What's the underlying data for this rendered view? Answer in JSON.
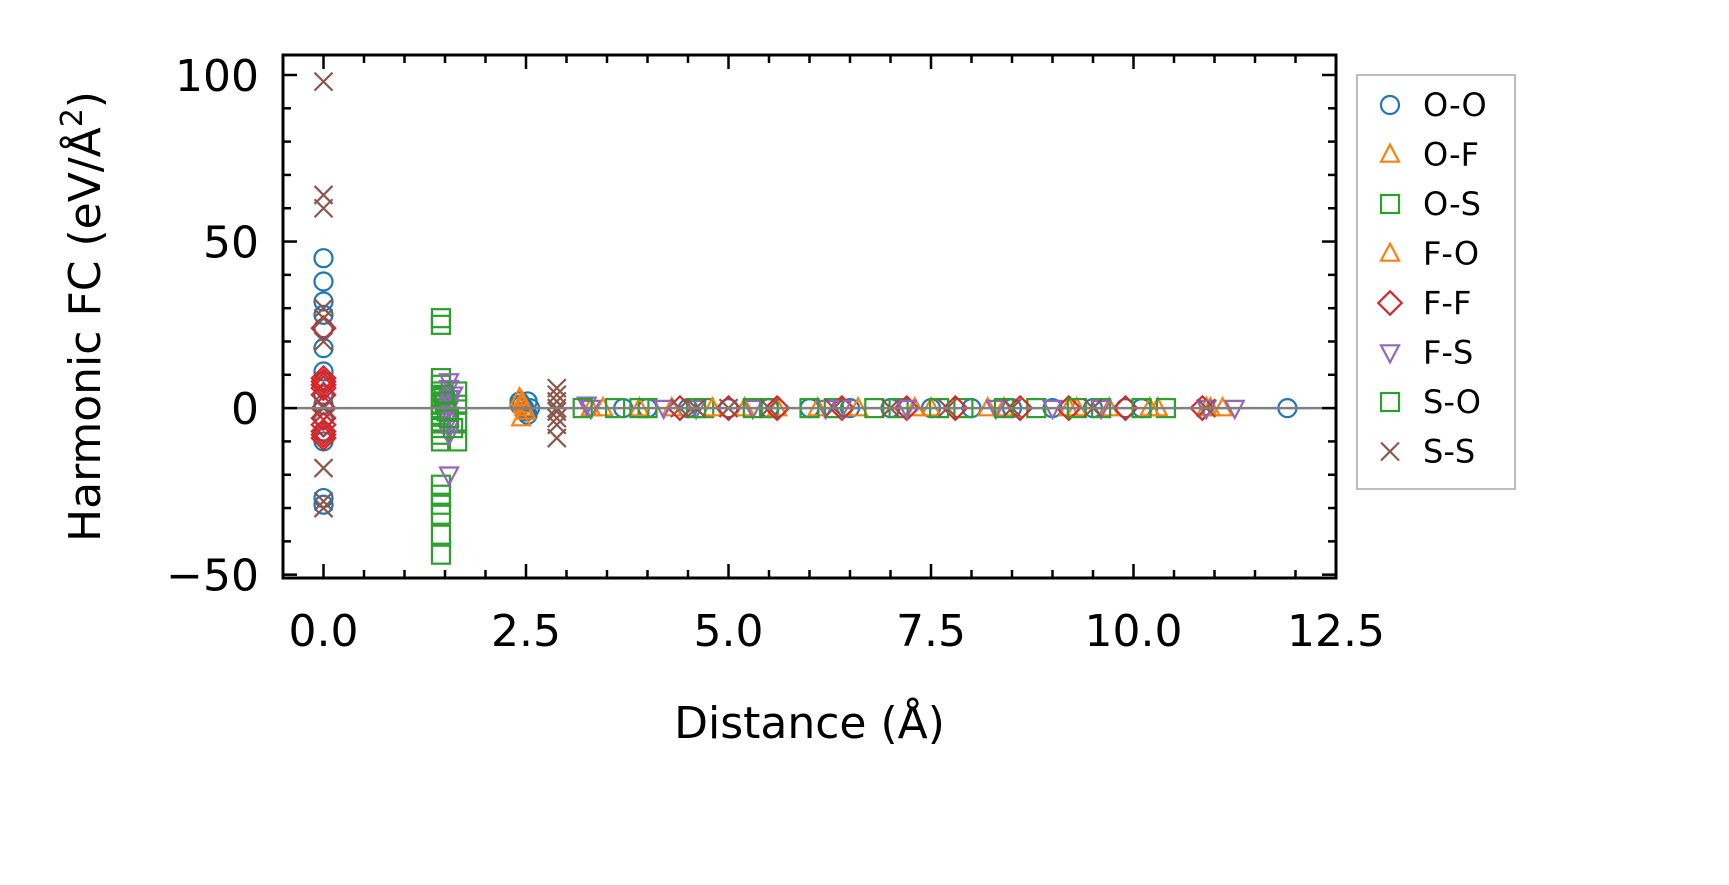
{
  "chart_data": {
    "type": "scatter",
    "xlabel": "Distance (Å)",
    "ylabel_main": "Harmonic FC (eV/Å",
    "ylabel_sup": "2",
    "ylabel_close": ")",
    "xlim": [
      -0.5,
      12.5
    ],
    "ylim": [
      -51,
      106
    ],
    "xticks": [
      0,
      2.5,
      5,
      7.5,
      10,
      12.5
    ],
    "xtick_labels": [
      "0.0",
      "2.5",
      "5.0",
      "7.5",
      "10.0",
      "12.5"
    ],
    "yticks": [
      -50,
      0,
      50,
      100
    ],
    "ytick_labels": [
      "−50",
      "0",
      "50",
      "100"
    ],
    "zero_line": true,
    "grid": false,
    "legend_position": "outside-right",
    "series": [
      {
        "name": "O-O",
        "marker": "circle",
        "color": "#1f77b4",
        "x": [
          0,
          0,
          0,
          0,
          0,
          0,
          0,
          0,
          0,
          0,
          0,
          0,
          0,
          0,
          0,
          2.42,
          2.45,
          2.48,
          2.5,
          2.52,
          2.55,
          2.42,
          2.48,
          2.52,
          3.7,
          4.0,
          4.5,
          5.0,
          5.5,
          6.0,
          6.5,
          7.0,
          7.5,
          8.0,
          8.5,
          9.0,
          9.5,
          9.9,
          10.1,
          11.9
        ],
        "y": [
          45,
          38,
          32,
          28,
          24,
          18,
          11,
          8,
          4,
          1,
          -3,
          -7,
          -10,
          -27,
          -29,
          2,
          1,
          0,
          -1,
          -2,
          0,
          1,
          -1,
          2,
          0,
          0,
          0,
          0,
          0,
          0,
          0,
          0,
          0,
          0,
          0,
          0,
          0,
          0,
          0,
          0
        ]
      },
      {
        "name": "O-F",
        "marker": "triangle-up",
        "color": "#ff7f0e",
        "x": [
          2.42,
          2.46,
          2.5,
          2.44,
          2.48,
          3.45,
          4.3,
          5.2,
          6.1,
          7.3,
          8.2,
          9.2,
          9.7,
          10.3,
          10.95,
          11.1
        ],
        "y": [
          3,
          1,
          -1,
          -3,
          0,
          0,
          0,
          0,
          0,
          0,
          0,
          0,
          0,
          0,
          0,
          0
        ]
      },
      {
        "name": "O-S",
        "marker": "square",
        "color": "#2ca02c",
        "x": [
          1.45,
          1.45,
          1.45,
          1.45,
          1.45,
          1.45,
          1.45,
          1.45,
          1.45,
          1.45,
          1.45,
          1.45,
          1.45,
          1.45,
          1.45,
          1.45,
          1.45,
          1.45,
          1.45,
          1.65,
          1.65,
          1.65,
          1.65,
          3.6,
          4.0,
          4.7,
          5.5,
          6.3,
          7.1,
          7.9,
          8.8,
          9.6,
          10.4
        ],
        "y": [
          27,
          25,
          9,
          7,
          5,
          3,
          1,
          0,
          -2,
          -4,
          -6,
          -8,
          -10,
          -23,
          -26,
          -29,
          -32,
          -38,
          -44,
          5,
          1,
          -4,
          -10,
          0,
          0,
          0,
          0,
          0,
          0,
          0,
          0,
          0,
          0
        ]
      },
      {
        "name": "F-O",
        "marker": "triangle-up",
        "color": "#ff7f0e",
        "x": [
          2.45,
          3.3,
          3.9,
          4.8,
          5.6,
          6.6,
          7.5,
          8.4,
          9.3,
          10.2,
          10.9
        ],
        "y": [
          2,
          0,
          0,
          0,
          0,
          0,
          0,
          0,
          0,
          0,
          0
        ]
      },
      {
        "name": "F-F",
        "marker": "diamond",
        "color": "#d62728",
        "x": [
          0,
          0,
          0,
          0,
          0,
          0,
          0,
          0,
          0,
          0,
          0,
          0,
          4.4,
          5.0,
          5.6,
          6.4,
          7.2,
          7.8,
          8.6,
          9.2,
          9.9,
          10.85
        ],
        "y": [
          24,
          9,
          8,
          7,
          6,
          4,
          0,
          -3,
          -5,
          -7,
          -8,
          -9,
          0,
          0,
          0,
          0,
          0,
          0,
          0,
          0,
          0,
          0
        ]
      },
      {
        "name": "F-S",
        "marker": "triangle-down",
        "color": "#9467bd",
        "x": [
          1.55,
          1.55,
          1.55,
          1.55,
          1.55,
          1.55,
          1.55,
          1.55,
          1.55,
          1.55,
          1.6,
          3.25,
          3.3,
          4.2,
          4.6,
          5.3,
          6.2,
          6.4,
          7.2,
          8.3,
          9.0,
          9.6,
          10.9,
          11.25
        ],
        "y": [
          8,
          6,
          3,
          1,
          0,
          -2,
          -4,
          -6,
          -8,
          -20,
          4,
          1,
          0,
          0,
          0,
          0,
          0,
          0,
          0,
          0,
          0,
          0,
          0,
          0
        ]
      },
      {
        "name": "S-O",
        "marker": "square",
        "color": "#2ca02c",
        "x": [
          1.48,
          1.5,
          1.52,
          1.55,
          1.6,
          3.2,
          3.9,
          4.6,
          5.3,
          6.0,
          6.8,
          7.6,
          8.4,
          9.3,
          10.1
        ],
        "y": [
          4,
          2,
          -1,
          -3,
          -6,
          0,
          0,
          0,
          0,
          0,
          0,
          0,
          0,
          0,
          0
        ]
      },
      {
        "name": "S-S",
        "marker": "x",
        "color": "#8c564b",
        "x": [
          0,
          0,
          0,
          0,
          0,
          0,
          0,
          0,
          0,
          0,
          2.88,
          2.88,
          2.88,
          2.88,
          2.88,
          2.88,
          2.88,
          2.88,
          4.4,
          4.6,
          5.0,
          5.5,
          6.3,
          7.0,
          7.7,
          8.5,
          9.5,
          10.9
        ],
        "y": [
          98,
          64,
          60,
          30,
          27,
          20,
          0,
          -18,
          -28,
          -30,
          6,
          4,
          2,
          0,
          -1,
          -3,
          -5,
          -9,
          0,
          0,
          0,
          0,
          0,
          0,
          0,
          0,
          0,
          0
        ]
      }
    ]
  }
}
